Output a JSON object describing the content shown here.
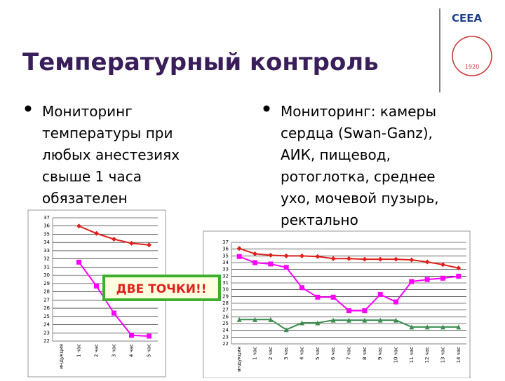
{
  "slide": {
    "title": "Температурный контроль",
    "logo": {
      "text": "CEEA",
      "year": "1920"
    },
    "bullets_left": [
      "Мониторинг",
      "температуры при",
      "любых анестезиях",
      "свыше 1 часа",
      "обязателен"
    ],
    "bullets_right": [
      "Мониторинг: камеры",
      "сердца (Swan-Ganz),",
      "АИК, пищевод,",
      "ротоглотка, среднее",
      "ухо, мочевой пузырь,",
      "ректально"
    ],
    "annotation": "ДВЕ ТОЧКИ!!"
  },
  "chart_data": [
    {
      "type": "line",
      "categories": [
        "индукция",
        "1 час",
        "2 час",
        "3 час",
        "4 час",
        "5 час"
      ],
      "series": [
        {
          "color": "#e0201c",
          "marker": "diamond",
          "values": [
            null,
            36.0,
            35.1,
            34.4,
            33.9,
            33.7
          ]
        },
        {
          "color": "#ff00ff",
          "marker": "square",
          "values": [
            null,
            31.6,
            28.7,
            25.4,
            22.7,
            22.6
          ]
        }
      ],
      "ylim": [
        22,
        37
      ],
      "yticks": [
        22,
        23,
        24,
        25,
        26,
        27,
        28,
        29,
        30,
        31,
        32,
        33,
        34,
        35,
        36,
        37
      ],
      "grid": true
    },
    {
      "type": "line",
      "categories": [
        "индукция",
        "1 час",
        "2 час",
        "3 час",
        "4 час",
        "5 час",
        "6 час",
        "7 час",
        "8 час",
        "9 час",
        "10 час",
        "11 час",
        "12 час",
        "13 час",
        "14 час"
      ],
      "series": [
        {
          "color": "#e0201c",
          "marker": "diamond",
          "values": [
            36.1,
            35.3,
            35.1,
            35.0,
            35.0,
            34.9,
            34.6,
            34.6,
            34.5,
            34.5,
            34.5,
            34.4,
            34.1,
            33.7,
            33.2
          ]
        },
        {
          "color": "#ff00ff",
          "marker": "square",
          "values": [
            34.9,
            34.0,
            33.8,
            33.3,
            30.3,
            28.9,
            28.9,
            26.9,
            26.9,
            29.3,
            28.2,
            31.2,
            31.5,
            31.7,
            32.0
          ]
        },
        {
          "color": "#3c8c50",
          "marker": "triangle",
          "values": [
            25.6,
            25.6,
            25.6,
            24.1,
            25.1,
            25.1,
            25.5,
            25.5,
            25.5,
            25.5,
            25.5,
            24.5,
            24.5,
            24.5,
            24.5
          ]
        }
      ],
      "ylim": [
        22,
        37
      ],
      "yticks": [
        22,
        23,
        24,
        25,
        26,
        27,
        28,
        29,
        30,
        31,
        32,
        33,
        34,
        35,
        36,
        37
      ],
      "grid": true
    }
  ]
}
